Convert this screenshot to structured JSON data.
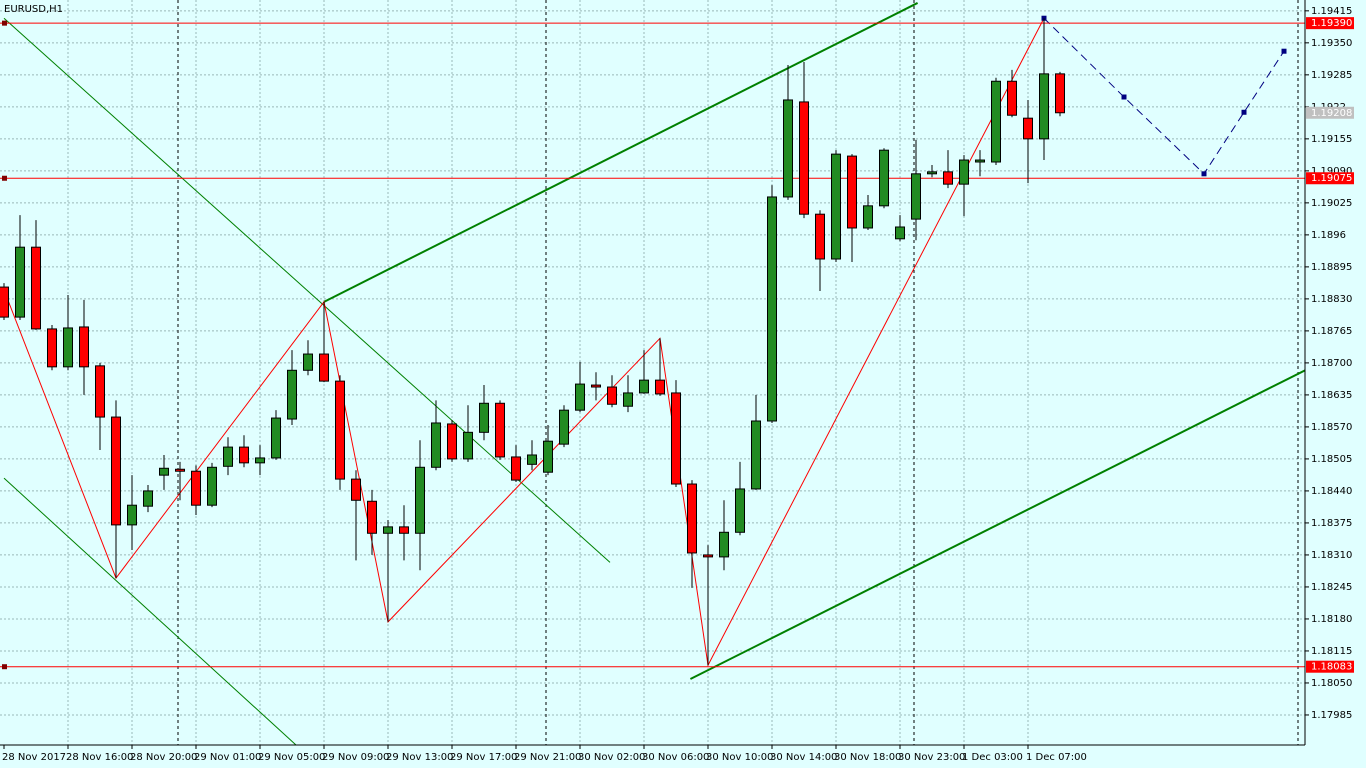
{
  "chart_data": {
    "type": "candlestick",
    "title": "EURUSD,H1",
    "categories": [
      "28 Nov 2017",
      null,
      null,
      null,
      "28 Nov 16:00",
      null,
      null,
      null,
      "28 Nov 20:00",
      null,
      null,
      null,
      "29 Nov 01:00",
      null,
      null,
      null,
      "29 Nov 05:00",
      null,
      null,
      null,
      "29 Nov 09:00",
      null,
      null,
      null,
      "29 Nov 13:00",
      null,
      null,
      null,
      "29 Nov 17:00",
      null,
      null,
      null,
      "29 Nov 21:00",
      null,
      null,
      null,
      "30 Nov 02:00",
      null,
      null,
      null,
      "30 Nov 06:00",
      null,
      null,
      null,
      "30 Nov 10:00",
      null,
      null,
      null,
      "30 Nov 14:00",
      null,
      null,
      null,
      "30 Nov 18:00",
      null,
      null,
      null,
      "30 Nov 23:00",
      null,
      null,
      null,
      "1 Dec 03:00",
      null,
      null,
      null,
      "1 Dec 07:00",
      null,
      null
    ],
    "open": [
      1.18854,
      1.18793,
      1.18935,
      1.18769,
      1.18692,
      1.18773,
      1.18694,
      1.1859,
      1.18371,
      1.18409,
      1.18472,
      1.18484,
      1.1848,
      1.18411,
      1.1849,
      1.18529,
      1.18497,
      1.18507,
      1.18586,
      1.18685,
      1.18718,
      1.18663,
      1.18464,
      1.18419,
      1.18354,
      1.18367,
      1.18354,
      1.18488,
      1.18576,
      1.18505,
      1.18559,
      1.18618,
      1.18509,
      1.18494,
      1.18478,
      1.18535,
      1.18604,
      1.18655,
      1.18651,
      1.18612,
      1.18639,
      1.18665,
      1.18639,
      1.18454,
      1.1831,
      1.18306,
      1.18356,
      1.18444,
      1.18582,
      1.19037,
      1.1923,
      1.19002,
      1.18911,
      1.1912,
      1.18974,
      1.19019,
      1.18952,
      1.18992,
      1.19084,
      1.19088,
      1.19063,
      1.19108,
      1.19108,
      1.19272,
      1.19197,
      1.19155,
      1.19287
    ],
    "high": [
      1.18862,
      1.19,
      1.1899,
      1.18777,
      1.18838,
      1.18828,
      1.187,
      1.18624,
      1.18472,
      1.18452,
      1.18513,
      1.18499,
      1.18492,
      1.18497,
      1.18549,
      1.18553,
      1.18533,
      1.18604,
      1.18726,
      1.18746,
      1.18824,
      1.18675,
      1.18482,
      1.18442,
      1.18381,
      1.18411,
      1.18543,
      1.18624,
      1.18584,
      1.18614,
      1.18655,
      1.18624,
      1.18533,
      1.18543,
      1.18574,
      1.18614,
      1.18702,
      1.18681,
      1.18675,
      1.18675,
      1.18726,
      1.1875,
      1.18665,
      1.18462,
      1.1833,
      1.18421,
      1.18499,
      1.18635,
      1.19061,
      1.19305,
      1.19311,
      1.1901,
      1.19132,
      1.19124,
      1.19041,
      1.19136,
      1.19,
      1.19153,
      1.19102,
      1.19132,
      1.19122,
      1.19132,
      1.19279,
      1.19295,
      1.19234,
      1.194,
      1.19291
    ],
    "low": [
      1.18787,
      1.18787,
      1.18767,
      1.18685,
      1.18685,
      1.18635,
      1.18523,
      1.18263,
      1.1832,
      1.18397,
      1.18442,
      1.18421,
      1.18391,
      1.18407,
      1.18472,
      1.18488,
      1.18472,
      1.18503,
      1.18574,
      1.18675,
      1.18661,
      1.18442,
      1.18299,
      1.1831,
      1.18174,
      1.18299,
      1.18279,
      1.18482,
      1.18499,
      1.18499,
      1.18543,
      1.18503,
      1.18458,
      1.18482,
      1.18472,
      1.18529,
      1.186,
      1.18624,
      1.1861,
      1.186,
      1.18637,
      1.18633,
      1.18448,
      1.18243,
      1.18086,
      1.18279,
      1.1835,
      1.18442,
      1.18578,
      1.19031,
      1.18994,
      1.18846,
      1.18905,
      1.18905,
      1.1897,
      1.19014,
      1.18947,
      1.18949,
      1.19077,
      1.19055,
      1.18998,
      1.19079,
      1.19102,
      1.19199,
      1.19065,
      1.19112,
      1.19201
    ],
    "close": [
      1.18793,
      1.18935,
      1.18769,
      1.18692,
      1.18771,
      1.18692,
      1.1859,
      1.18371,
      1.18411,
      1.1844,
      1.18486,
      1.1848,
      1.18411,
      1.18488,
      1.18529,
      1.18497,
      1.18507,
      1.18588,
      1.18685,
      1.18718,
      1.18663,
      1.18464,
      1.18421,
      1.18354,
      1.18367,
      1.18354,
      1.18488,
      1.18578,
      1.18505,
      1.18559,
      1.18618,
      1.18509,
      1.18462,
      1.18513,
      1.18541,
      1.18604,
      1.18657,
      1.18651,
      1.18616,
      1.18639,
      1.18665,
      1.18637,
      1.18454,
      1.18314,
      1.18306,
      1.18356,
      1.18444,
      1.18582,
      1.19037,
      1.19234,
      1.19002,
      1.18911,
      1.19124,
      1.18974,
      1.19019,
      1.19132,
      1.18976,
      1.19084,
      1.19088,
      1.19063,
      1.19112,
      1.19112,
      1.19272,
      1.19203,
      1.19155,
      1.19287,
      1.19208
    ],
    "up_color": "#228b22",
    "down_color": "#ff0000",
    "ylim": [
      1.17924,
      1.19437
    ],
    "yticks": [
      1.19415,
      {
        "value": 1.1935,
        "label": "1.19350"
      },
      1.19285,
      1.1922,
      1.19155,
      {
        "value": 1.1909,
        "label": "1.19090"
      },
      1.19025,
      1.1896,
      1.18895,
      {
        "value": 1.1883,
        "label": "1.18830"
      },
      1.18765,
      {
        "value": 1.187,
        "label": "1.18700"
      },
      1.18635,
      {
        "value": 1.1857,
        "label": "1.18570"
      },
      1.18505,
      {
        "value": 1.1844,
        "label": "1.18440"
      },
      1.18375,
      {
        "value": 1.1831,
        "label": "1.18310"
      },
      1.18245,
      {
        "value": 1.1818,
        "label": "1.18180"
      },
      1.18115,
      {
        "value": 1.1805,
        "label": "1.18050"
      },
      1.17985
    ],
    "grid": true,
    "levels": [
      {
        "value": 1.1939,
        "label": "1.19390",
        "color": "#ff0000"
      },
      {
        "value": 1.19075,
        "label": "1.19075",
        "color": "#ff0000"
      },
      {
        "value": 1.18083,
        "label": "1.18083",
        "color": "#ff0000"
      }
    ],
    "current_price": {
      "value": 1.19208,
      "label": "1.19208",
      "color": "#c0c0c0"
    },
    "zigzag": {
      "color": "#ff0000",
      "x": [
        0,
        7,
        20,
        24,
        41,
        44,
        65
      ],
      "y": [
        1.18848,
        1.18263,
        1.18824,
        1.18174,
        1.1875,
        1.18086,
        1.194
      ]
    },
    "projection": {
      "color": "#000080",
      "x": [
        65,
        70,
        75,
        77.5,
        80
      ],
      "y": [
        1.194,
        1.1924,
        1.19084,
        1.19209,
        1.19333
      ]
    },
    "trendlines": [
      {
        "color": "#008000",
        "width": 2,
        "x": [
          20,
          57.1
        ],
        "y": [
          1.18824,
          1.19431
        ]
      },
      {
        "color": "#008000",
        "width": 2,
        "x": [
          42.9,
          81.75
        ],
        "y": [
          1.18058,
          1.18692
        ]
      },
      {
        "color": "#008000",
        "width": 1,
        "x": [
          0,
          37.875
        ],
        "y": [
          1.194,
          1.18295
        ]
      },
      {
        "color": "#008000",
        "width": 1,
        "x": [
          0,
          18.25
        ],
        "y": [
          1.18466,
          1.17924
        ]
      }
    ]
  }
}
